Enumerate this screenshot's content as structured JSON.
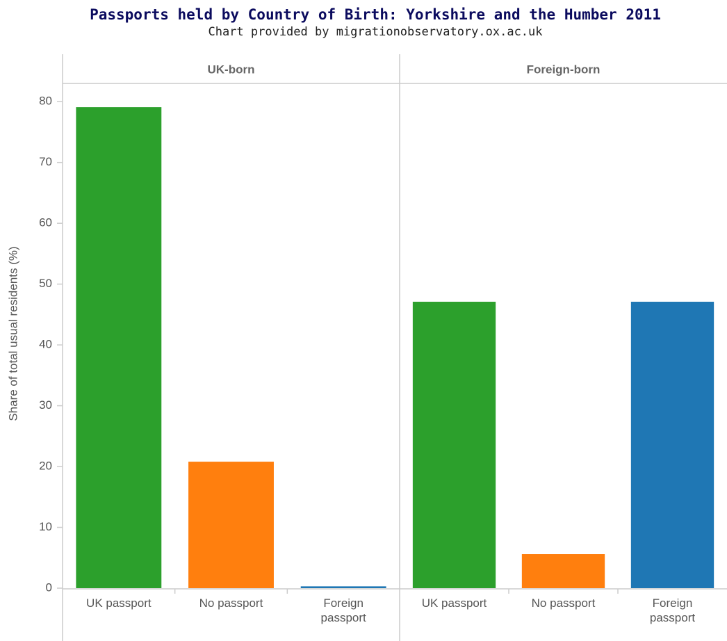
{
  "chart_data": {
    "type": "bar",
    "title": "Passports held by Country of Birth: Yorkshire and the Humber 2011",
    "subtitle": "Chart provided by migrationobservatory.ox.ac.uk",
    "y_label": "Share of total usual residents (%)",
    "categories": [
      "UK passport",
      "No passport",
      "Foreign passport"
    ],
    "colors": [
      "#2ca02c",
      "#ff7f0e",
      "#1f77b4"
    ],
    "panels": [
      {
        "title": "UK-born",
        "values": [
          79.1,
          20.8,
          0.3
        ]
      },
      {
        "title": "Foreign-born",
        "values": [
          47.1,
          5.6,
          47.1
        ]
      }
    ],
    "ylim": [
      0,
      83
    ],
    "yticks": [
      0,
      10,
      20,
      30,
      40,
      50,
      60,
      70,
      80
    ]
  }
}
